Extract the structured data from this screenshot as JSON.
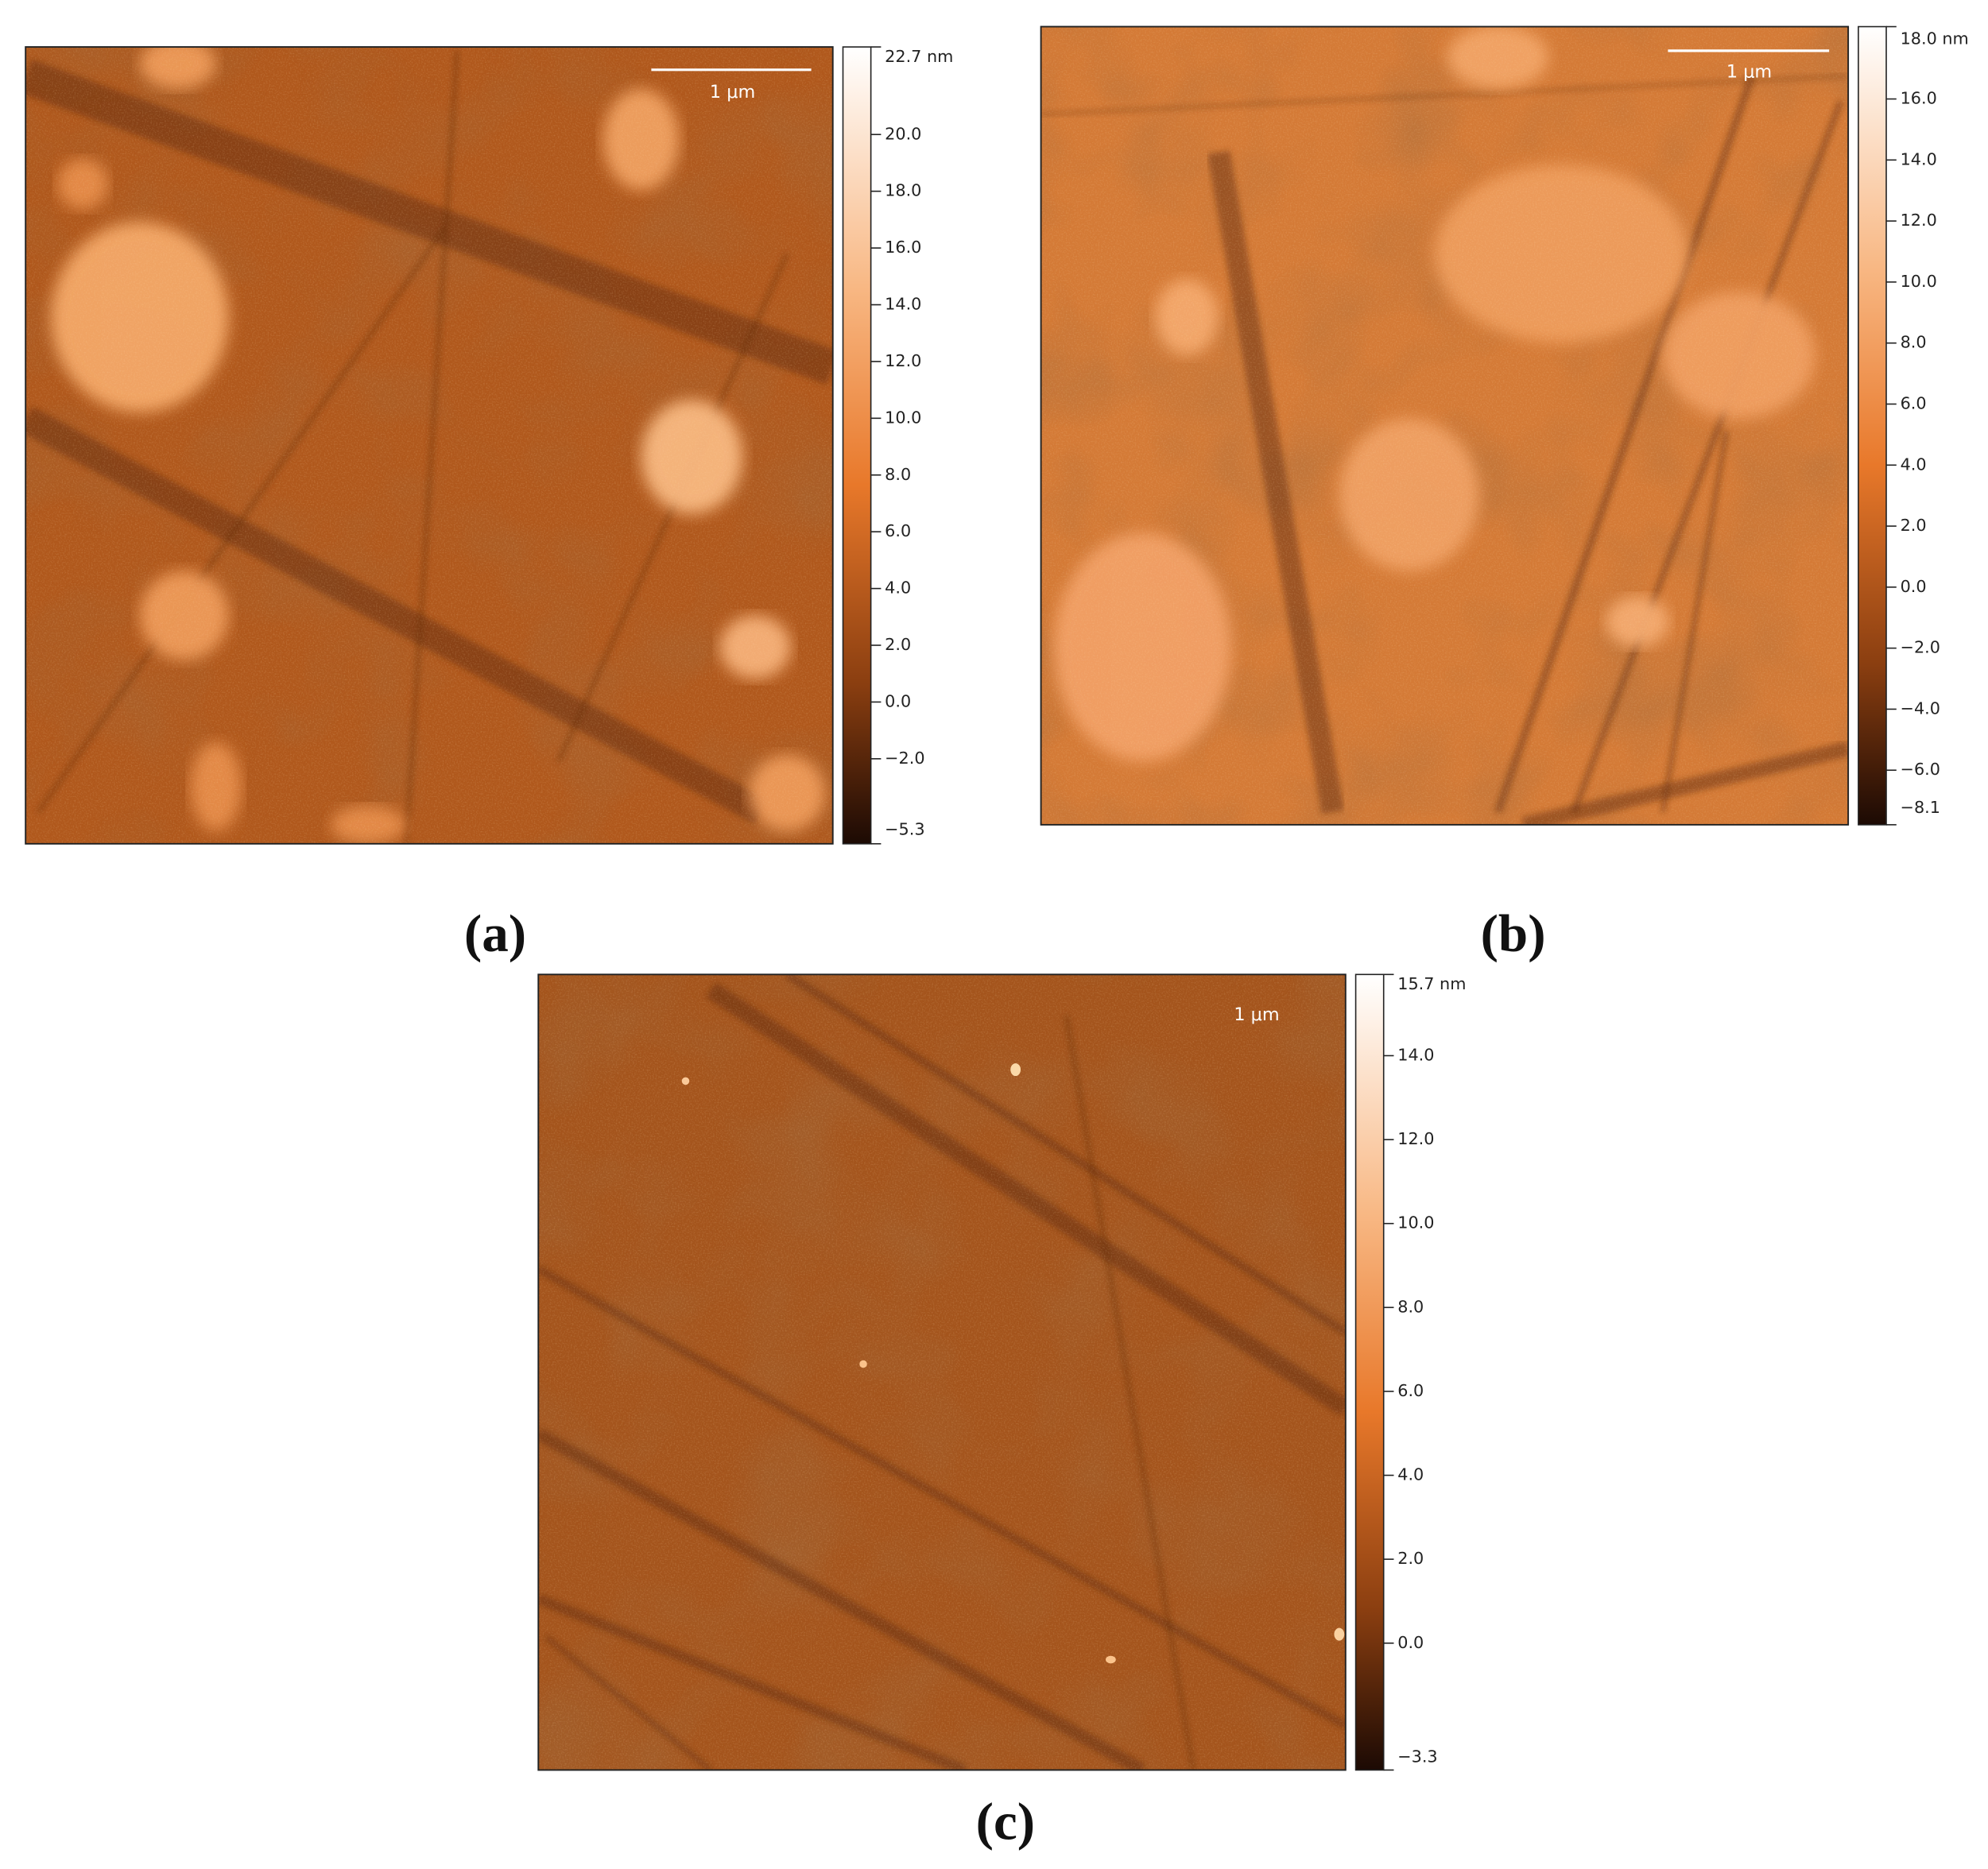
{
  "panels": [
    {
      "label": "(a)",
      "scale_bar": "1 μm",
      "colorbar": {
        "max_label": "22.7 nm",
        "ticks": [
          "20.0",
          "18.0",
          "16.0",
          "14.0",
          "12.0",
          "10.0",
          "8.0",
          "6.0",
          "4.0",
          "2.0",
          "0.0",
          "−2.0"
        ],
        "min_label": "−5.3"
      }
    },
    {
      "label": "(b)",
      "scale_bar": "1 μm",
      "colorbar": {
        "max_label": "18.0 nm",
        "ticks": [
          "16.0",
          "14.0",
          "12.0",
          "10.0",
          "8.0",
          "6.0",
          "4.0",
          "2.0",
          "0.0",
          "−2.0",
          "−4.0",
          "−6.0"
        ],
        "min_label": "−8.1"
      }
    },
    {
      "label": "(c)",
      "scale_bar": "1 μm",
      "colorbar": {
        "max_label": "15.7 nm",
        "ticks": [
          "14.0",
          "12.0",
          "10.0",
          "8.0",
          "6.0",
          "4.0",
          "2.0",
          "0.0"
        ],
        "min_label": "−3.3"
      }
    }
  ]
}
